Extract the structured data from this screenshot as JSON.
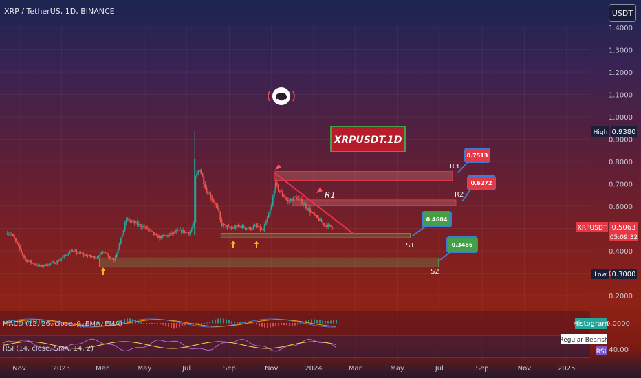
{
  "header": {
    "title": "XRP / TetherUS, 1D, BINANCE"
  },
  "price_axis": {
    "unit_button": "USDT",
    "ticks": [
      "1.4000",
      "1.3000",
      "1.2000",
      "1.1000",
      "1.0000",
      "0.9000",
      "0.8000",
      "0.7000",
      "0.6000",
      "0.5000",
      "0.4000",
      "0.3000",
      "0.2000"
    ],
    "high": {
      "label": "High",
      "value": "0.9380"
    },
    "low": {
      "label": "Low",
      "value": "0.3000"
    },
    "symbol_label": "XRPUSDT",
    "last_price": "0.5063",
    "countdown": "05:09:32"
  },
  "time_axis": {
    "labels": [
      "Nov",
      "2023",
      "Mar",
      "May",
      "Jul",
      "Sep",
      "Nov",
      "2024",
      "Mar",
      "May",
      "Jul",
      "Sep",
      "Nov",
      "2025"
    ]
  },
  "chart_title_box": "XRPUSDT.1D",
  "levels": [
    {
      "name": "R3",
      "value": "0.7513",
      "kind": "resistance"
    },
    {
      "name": "R2",
      "value": "0.6272",
      "kind": "resistance"
    },
    {
      "name": "S1",
      "value": "0.4604",
      "kind": "support"
    },
    {
      "name": "S2",
      "value": "0.3486",
      "kind": "support"
    }
  ],
  "trendline_label": "R1",
  "indicators": {
    "macd": {
      "label": "MACD (12, 26, close, 9, EMA, EMA)",
      "badge": "Histogram",
      "value": "0.0000"
    },
    "rsi": {
      "label": "RSI (14, close, SMA, 14, 2)",
      "badge": "RSI",
      "value": "40.00",
      "signal": "Regular Bearish"
    }
  },
  "colors": {
    "bull": "#26a69a",
    "bear": "#ef5350",
    "support": "#4caf50",
    "resistance": "#e53945",
    "trend": "#e8334a"
  },
  "chart_data": {
    "type": "candlestick",
    "x_unit": "date",
    "x_range": [
      "2022-10-15",
      "2025-01-31"
    ],
    "ylim": [
      0.15,
      1.44
    ],
    "y": [
      0.48,
      0.36,
      0.33,
      0.35,
      0.4,
      0.38,
      0.37,
      0.4,
      0.37,
      0.36,
      0.42,
      0.54,
      0.52,
      0.5,
      0.46,
      0.47,
      0.49,
      0.48,
      0.52,
      0.72,
      0.77,
      0.67,
      0.62,
      0.58,
      0.52,
      0.5,
      0.51,
      0.5,
      0.51,
      0.49,
      0.6,
      0.7,
      0.66,
      0.62,
      0.64,
      0.62,
      0.56,
      0.52,
      0.5063
    ],
    "x": [
      "2022-10-20",
      "2022-11-10",
      "2022-12-01",
      "2022-12-25",
      "2023-01-15",
      "2023-02-05",
      "2023-02-20",
      "2023-03-05",
      "2023-03-12",
      "2023-03-18",
      "2023-03-25",
      "2023-04-05",
      "2023-04-20",
      "2023-05-05",
      "2023-05-20",
      "2023-06-05",
      "2023-06-20",
      "2023-07-05",
      "2023-07-12",
      "2023-07-13",
      "2023-07-20",
      "2023-07-30",
      "2023-08-10",
      "2023-08-16",
      "2023-08-20",
      "2023-09-01",
      "2023-09-15",
      "2023-10-01",
      "2023-10-10",
      "2023-10-20",
      "2023-11-01",
      "2023-11-06",
      "2023-11-15",
      "2023-11-25",
      "2023-12-05",
      "2023-12-15",
      "2024-01-01",
      "2024-01-15",
      "2024-01-28"
    ]
  }
}
